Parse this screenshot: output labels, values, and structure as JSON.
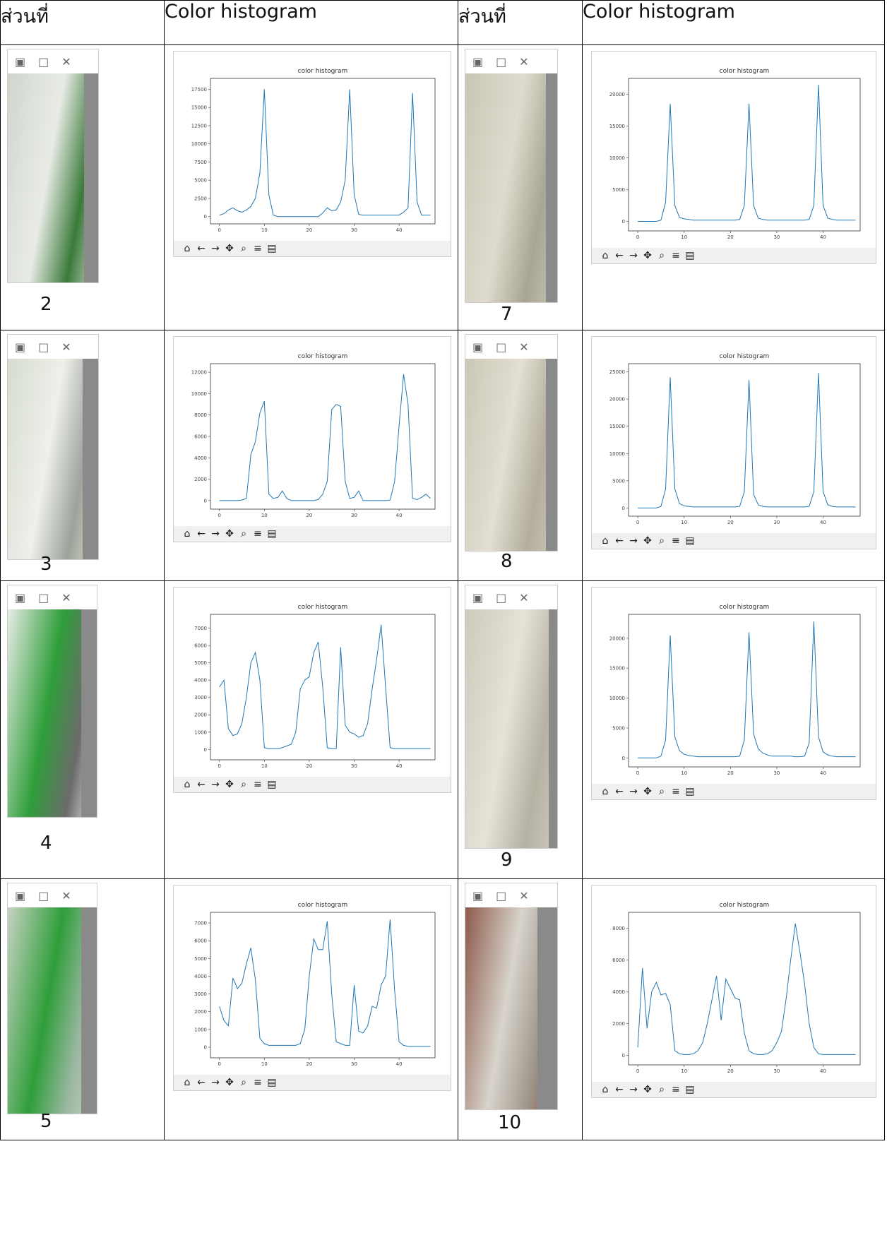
{
  "table": {
    "headers": [
      "ส่วนที่",
      "Color histogram",
      "ส่วนที่",
      "Color histogram"
    ]
  },
  "icons": {
    "titlebar": [
      "python-icon",
      "maximize-icon",
      "close-icon"
    ],
    "toolbar": [
      "home-icon",
      "back-icon",
      "forward-icon",
      "pan-icon",
      "zoom-icon",
      "configure-icon",
      "save-icon"
    ]
  },
  "accent_color": "#1f77b4",
  "rows": [
    {
      "left": {
        "part": "2",
        "photo_colors": [
          "#cfd6cc",
          "#e9ece6",
          "#3b7a3b"
        ]
      },
      "right": {
        "part": "7",
        "photo_colors": [
          "#c9c5b6",
          "#dfdccf",
          "#a9a594"
        ]
      }
    },
    {
      "left": {
        "part": "3",
        "photo_colors": [
          "#d6dcd0",
          "#eef0ea",
          "#9ba39a"
        ]
      },
      "right": {
        "part": "8",
        "photo_colors": [
          "#cbc7b7",
          "#e2dfd3",
          "#b3ae9d"
        ]
      }
    },
    {
      "left": {
        "part": "4",
        "photo_colors": [
          "#e8ece6",
          "#2f9e3a",
          "#6b6b6b"
        ]
      },
      "right": {
        "part": "9",
        "photo_colors": [
          "#cdc9bc",
          "#e5e2d8",
          "#b5b1a3"
        ]
      }
    },
    {
      "left": {
        "part": "5",
        "photo_colors": [
          "#c7d2c2",
          "#2f9e3a",
          "#9ab7a1"
        ]
      },
      "right": {
        "part": "10",
        "photo_colors": [
          "#8c5a4a",
          "#d8d4cc",
          "#a0988c"
        ]
      }
    }
  ],
  "chart_data": [
    {
      "id": "hist-2",
      "type": "line",
      "title": "color histogram",
      "xlim": [
        -2,
        48
      ],
      "ylim": [
        -1000,
        19000
      ],
      "yticks": [
        0,
        2500,
        5000,
        7500,
        10000,
        12500,
        15000,
        17500
      ],
      "xticks": [
        0,
        10,
        20,
        30,
        40
      ],
      "x": [
        0,
        1,
        2,
        3,
        4,
        5,
        6,
        7,
        8,
        9,
        10,
        11,
        12,
        13,
        14,
        15,
        16,
        17,
        18,
        19,
        20,
        21,
        22,
        23,
        24,
        25,
        26,
        27,
        28,
        29,
        30,
        31,
        32,
        33,
        34,
        35,
        36,
        37,
        38,
        39,
        40,
        41,
        42,
        43,
        44,
        45,
        46,
        47
      ],
      "values": [
        200,
        400,
        900,
        1200,
        800,
        600,
        900,
        1400,
        2500,
        6000,
        17500,
        3000,
        200,
        0,
        0,
        0,
        0,
        0,
        0,
        0,
        0,
        0,
        0,
        500,
        1200,
        800,
        900,
        2000,
        5000,
        17500,
        3000,
        300,
        200,
        200,
        200,
        200,
        200,
        200,
        200,
        200,
        200,
        600,
        1200,
        17000,
        2000,
        200,
        200,
        200
      ]
    },
    {
      "id": "hist-7",
      "type": "line",
      "title": "color histogram",
      "xlim": [
        -2,
        48
      ],
      "ylim": [
        -1500,
        22500
      ],
      "yticks": [
        0,
        5000,
        10000,
        15000,
        20000
      ],
      "xticks": [
        0,
        10,
        20,
        30,
        40
      ],
      "x": [
        0,
        1,
        2,
        3,
        4,
        5,
        6,
        7,
        8,
        9,
        10,
        11,
        12,
        13,
        14,
        15,
        16,
        17,
        18,
        19,
        20,
        21,
        22,
        23,
        24,
        25,
        26,
        27,
        28,
        29,
        30,
        31,
        32,
        33,
        34,
        35,
        36,
        37,
        38,
        39,
        40,
        41,
        42,
        43,
        44,
        45,
        46,
        47
      ],
      "values": [
        0,
        0,
        0,
        0,
        0,
        200,
        3000,
        18500,
        2500,
        600,
        400,
        300,
        200,
        200,
        200,
        200,
        200,
        200,
        200,
        200,
        200,
        200,
        300,
        2500,
        18500,
        2500,
        500,
        300,
        200,
        200,
        200,
        200,
        200,
        200,
        200,
        200,
        200,
        300,
        2500,
        21500,
        2500,
        500,
        300,
        200,
        200,
        200,
        200,
        200
      ]
    },
    {
      "id": "hist-3",
      "type": "line",
      "title": "color histogram",
      "xlim": [
        -2,
        48
      ],
      "ylim": [
        -800,
        12800
      ],
      "yticks": [
        0,
        2000,
        4000,
        6000,
        8000,
        10000,
        12000
      ],
      "xticks": [
        0,
        10,
        20,
        30,
        40
      ],
      "x": [
        0,
        1,
        2,
        3,
        4,
        5,
        6,
        7,
        8,
        9,
        10,
        11,
        12,
        13,
        14,
        15,
        16,
        17,
        18,
        19,
        20,
        21,
        22,
        23,
        24,
        25,
        26,
        27,
        28,
        29,
        30,
        31,
        32,
        33,
        34,
        35,
        36,
        37,
        38,
        39,
        40,
        41,
        42,
        43,
        44,
        45,
        46,
        47
      ],
      "values": [
        0,
        0,
        0,
        0,
        0,
        50,
        200,
        4300,
        5500,
        8200,
        9300,
        600,
        200,
        300,
        900,
        200,
        0,
        0,
        0,
        0,
        0,
        0,
        100,
        600,
        1800,
        8500,
        9000,
        8800,
        1800,
        200,
        300,
        900,
        0,
        0,
        0,
        0,
        0,
        0,
        50,
        1800,
        7000,
        11800,
        9000,
        200,
        100,
        300,
        600,
        200
      ]
    },
    {
      "id": "hist-8",
      "type": "line",
      "title": "color histogram",
      "xlim": [
        -2,
        48
      ],
      "ylim": [
        -1500,
        26500
      ],
      "yticks": [
        0,
        5000,
        10000,
        15000,
        20000,
        25000
      ],
      "xticks": [
        0,
        10,
        20,
        30,
        40
      ],
      "x": [
        0,
        1,
        2,
        3,
        4,
        5,
        6,
        7,
        8,
        9,
        10,
        11,
        12,
        13,
        14,
        15,
        16,
        17,
        18,
        19,
        20,
        21,
        22,
        23,
        24,
        25,
        26,
        27,
        28,
        29,
        30,
        31,
        32,
        33,
        34,
        35,
        36,
        37,
        38,
        39,
        40,
        41,
        42,
        43,
        44,
        45,
        46,
        47
      ],
      "values": [
        0,
        0,
        0,
        0,
        0,
        300,
        3500,
        24000,
        3500,
        800,
        400,
        300,
        200,
        200,
        200,
        200,
        200,
        200,
        200,
        200,
        200,
        200,
        300,
        3000,
        23500,
        2500,
        600,
        300,
        200,
        200,
        200,
        200,
        200,
        200,
        200,
        200,
        200,
        300,
        3000,
        24800,
        3000,
        600,
        300,
        200,
        200,
        200,
        200,
        200
      ]
    },
    {
      "id": "hist-4",
      "type": "line",
      "title": "color histogram",
      "xlim": [
        -2,
        48
      ],
      "ylim": [
        -600,
        7800
      ],
      "yticks": [
        0,
        1000,
        2000,
        3000,
        4000,
        5000,
        6000,
        7000
      ],
      "xticks": [
        0,
        10,
        20,
        30,
        40
      ],
      "x": [
        0,
        1,
        2,
        3,
        4,
        5,
        6,
        7,
        8,
        9,
        10,
        11,
        12,
        13,
        14,
        15,
        16,
        17,
        18,
        19,
        20,
        21,
        22,
        23,
        24,
        25,
        26,
        27,
        28,
        29,
        30,
        31,
        32,
        33,
        34,
        35,
        36,
        37,
        38,
        39,
        40,
        41,
        42,
        43,
        44,
        45,
        46,
        47
      ],
      "values": [
        3600,
        4000,
        1200,
        800,
        900,
        1500,
        3000,
        5000,
        5600,
        4000,
        100,
        50,
        50,
        50,
        100,
        200,
        300,
        1000,
        3500,
        4000,
        4200,
        5600,
        6200,
        3600,
        100,
        50,
        50,
        5900,
        1400,
        1000,
        900,
        700,
        800,
        1500,
        3500,
        5200,
        7200,
        3600,
        100,
        50,
        50,
        50,
        50,
        50,
        50,
        50,
        50,
        50
      ]
    },
    {
      "id": "hist-9",
      "type": "line",
      "title": "color histogram",
      "xlim": [
        -2,
        48
      ],
      "ylim": [
        -1500,
        24000
      ],
      "yticks": [
        0,
        5000,
        10000,
        15000,
        20000
      ],
      "xticks": [
        0,
        10,
        20,
        30,
        40
      ],
      "x": [
        0,
        1,
        2,
        3,
        4,
        5,
        6,
        7,
        8,
        9,
        10,
        11,
        12,
        13,
        14,
        15,
        16,
        17,
        18,
        19,
        20,
        21,
        22,
        23,
        24,
        25,
        26,
        27,
        28,
        29,
        30,
        31,
        32,
        33,
        34,
        35,
        36,
        37,
        38,
        39,
        40,
        41,
        42,
        43,
        44,
        45,
        46,
        47
      ],
      "values": [
        0,
        0,
        0,
        0,
        0,
        300,
        3000,
        20500,
        3500,
        1200,
        600,
        400,
        300,
        200,
        200,
        200,
        200,
        200,
        200,
        200,
        200,
        200,
        300,
        3000,
        21000,
        4000,
        1500,
        800,
        500,
        300,
        300,
        300,
        300,
        300,
        200,
        200,
        300,
        2500,
        22800,
        3500,
        1000,
        500,
        300,
        200,
        200,
        200,
        200,
        200
      ]
    },
    {
      "id": "hist-5",
      "type": "line",
      "title": "color histogram",
      "xlim": [
        -2,
        48
      ],
      "ylim": [
        -600,
        7600
      ],
      "yticks": [
        0,
        1000,
        2000,
        3000,
        4000,
        5000,
        6000,
        7000
      ],
      "xticks": [
        0,
        10,
        20,
        30,
        40
      ],
      "x": [
        0,
        1,
        2,
        3,
        4,
        5,
        6,
        7,
        8,
        9,
        10,
        11,
        12,
        13,
        14,
        15,
        16,
        17,
        18,
        19,
        20,
        21,
        22,
        23,
        24,
        25,
        26,
        27,
        28,
        29,
        30,
        31,
        32,
        33,
        34,
        35,
        36,
        37,
        38,
        39,
        40,
        41,
        42,
        43,
        44,
        45,
        46,
        47
      ],
      "values": [
        2300,
        1500,
        1200,
        3900,
        3300,
        3600,
        4700,
        5600,
        3800,
        500,
        200,
        100,
        100,
        100,
        100,
        100,
        100,
        100,
        200,
        1000,
        4000,
        6100,
        5500,
        5500,
        7100,
        3000,
        300,
        200,
        100,
        100,
        3500,
        900,
        800,
        1200,
        2300,
        2200,
        3500,
        4000,
        7200,
        3200,
        300,
        100,
        50,
        50,
        50,
        50,
        50,
        50
      ]
    },
    {
      "id": "hist-10",
      "type": "line",
      "title": "color histogram",
      "xlim": [
        -2,
        48
      ],
      "ylim": [
        -600,
        9000
      ],
      "yticks": [
        0,
        2000,
        4000,
        6000,
        8000
      ],
      "xticks": [
        0,
        10,
        20,
        30,
        40
      ],
      "x": [
        0,
        1,
        2,
        3,
        4,
        5,
        6,
        7,
        8,
        9,
        10,
        11,
        12,
        13,
        14,
        15,
        16,
        17,
        18,
        19,
        20,
        21,
        22,
        23,
        24,
        25,
        26,
        27,
        28,
        29,
        30,
        31,
        32,
        33,
        34,
        35,
        36,
        37,
        38,
        39,
        40,
        41,
        42,
        43,
        44,
        45,
        46,
        47
      ],
      "values": [
        500,
        5500,
        1700,
        4000,
        4600,
        3800,
        3900,
        3200,
        300,
        100,
        50,
        50,
        100,
        300,
        800,
        2000,
        3500,
        5000,
        2200,
        4800,
        4200,
        3600,
        3500,
        1400,
        300,
        100,
        50,
        50,
        100,
        300,
        800,
        1500,
        3500,
        6000,
        8300,
        6500,
        4500,
        2000,
        500,
        100,
        50,
        50,
        50,
        50,
        50,
        50,
        50,
        50
      ]
    }
  ]
}
